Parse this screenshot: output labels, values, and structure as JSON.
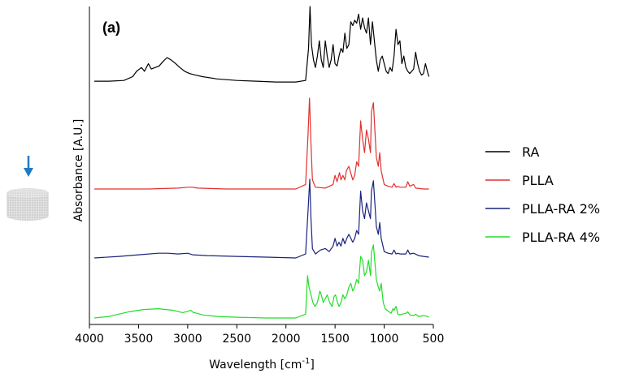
{
  "chart_data": {
    "type": "line",
    "panel_label": "(a)",
    "xlabel": "Wavelength [cm",
    "xlabel_sup": "-1",
    "xlabel_end": "]",
    "ylabel": "Absorbance [A.U.]",
    "xlim": [
      4000,
      500
    ],
    "x_ticks": [
      "4000",
      "3500",
      "3000",
      "2500",
      "2000",
      "1500",
      "1000",
      "500"
    ],
    "x_tick_values": [
      4000,
      3500,
      3000,
      2500,
      2000,
      1500,
      1000,
      500
    ],
    "y_ticks_shown": false,
    "grid": false,
    "legend_placement": "right",
    "series": [
      {
        "name": "RA",
        "color": "#000000",
        "points": [
          [
            3950,
            0.02
          ],
          [
            3800,
            0.02
          ],
          [
            3650,
            0.03
          ],
          [
            3560,
            0.08
          ],
          [
            3520,
            0.15
          ],
          [
            3470,
            0.2
          ],
          [
            3440,
            0.15
          ],
          [
            3400,
            0.25
          ],
          [
            3370,
            0.18
          ],
          [
            3330,
            0.2
          ],
          [
            3290,
            0.22
          ],
          [
            3250,
            0.28
          ],
          [
            3210,
            0.33
          ],
          [
            3170,
            0.3
          ],
          [
            3130,
            0.26
          ],
          [
            3080,
            0.2
          ],
          [
            3030,
            0.15
          ],
          [
            2980,
            0.12
          ],
          [
            2920,
            0.1
          ],
          [
            2850,
            0.08
          ],
          [
            2700,
            0.05
          ],
          [
            2500,
            0.03
          ],
          [
            2300,
            0.02
          ],
          [
            2100,
            0.01
          ],
          [
            1900,
            0.01
          ],
          [
            1800,
            0.03
          ],
          [
            1770,
            0.45
          ],
          [
            1755,
            1.0
          ],
          [
            1740,
            0.5
          ],
          [
            1720,
            0.3
          ],
          [
            1700,
            0.2
          ],
          [
            1680,
            0.35
          ],
          [
            1660,
            0.55
          ],
          [
            1640,
            0.3
          ],
          [
            1620,
            0.2
          ],
          [
            1600,
            0.55
          ],
          [
            1580,
            0.35
          ],
          [
            1560,
            0.2
          ],
          [
            1540,
            0.3
          ],
          [
            1520,
            0.5
          ],
          [
            1500,
            0.25
          ],
          [
            1480,
            0.22
          ],
          [
            1460,
            0.35
          ],
          [
            1440,
            0.45
          ],
          [
            1420,
            0.4
          ],
          [
            1400,
            0.65
          ],
          [
            1380,
            0.45
          ],
          [
            1360,
            0.5
          ],
          [
            1340,
            0.8
          ],
          [
            1320,
            0.75
          ],
          [
            1300,
            0.82
          ],
          [
            1280,
            0.78
          ],
          [
            1260,
            0.9
          ],
          [
            1240,
            0.7
          ],
          [
            1220,
            0.85
          ],
          [
            1200,
            0.72
          ],
          [
            1180,
            0.65
          ],
          [
            1160,
            0.85
          ],
          [
            1140,
            0.5
          ],
          [
            1120,
            0.8
          ],
          [
            1100,
            0.55
          ],
          [
            1080,
            0.3
          ],
          [
            1060,
            0.15
          ],
          [
            1040,
            0.3
          ],
          [
            1020,
            0.35
          ],
          [
            1000,
            0.25
          ],
          [
            980,
            0.15
          ],
          [
            960,
            0.12
          ],
          [
            940,
            0.2
          ],
          [
            920,
            0.15
          ],
          [
            900,
            0.35
          ],
          [
            880,
            0.7
          ],
          [
            860,
            0.5
          ],
          [
            840,
            0.55
          ],
          [
            820,
            0.25
          ],
          [
            800,
            0.35
          ],
          [
            780,
            0.2
          ],
          [
            760,
            0.15
          ],
          [
            740,
            0.12
          ],
          [
            720,
            0.15
          ],
          [
            700,
            0.18
          ],
          [
            680,
            0.4
          ],
          [
            660,
            0.25
          ],
          [
            640,
            0.15
          ],
          [
            620,
            0.1
          ],
          [
            600,
            0.12
          ],
          [
            580,
            0.25
          ],
          [
            560,
            0.15
          ],
          [
            545,
            0.08
          ]
        ]
      },
      {
        "name": "PLLA",
        "color": "#e0312f",
        "points": [
          [
            3950,
            0.0
          ],
          [
            3700,
            0.0
          ],
          [
            3400,
            0.0
          ],
          [
            3100,
            0.01
          ],
          [
            3000,
            0.02
          ],
          [
            2950,
            0.02
          ],
          [
            2900,
            0.01
          ],
          [
            2600,
            0.0
          ],
          [
            2300,
            0.0
          ],
          [
            2000,
            0.0
          ],
          [
            1900,
            0.0
          ],
          [
            1800,
            0.05
          ],
          [
            1775,
            0.6
          ],
          [
            1760,
            1.0
          ],
          [
            1745,
            0.5
          ],
          [
            1730,
            0.1
          ],
          [
            1700,
            0.02
          ],
          [
            1600,
            0.01
          ],
          [
            1520,
            0.05
          ],
          [
            1500,
            0.15
          ],
          [
            1480,
            0.08
          ],
          [
            1455,
            0.18
          ],
          [
            1440,
            0.1
          ],
          [
            1420,
            0.15
          ],
          [
            1400,
            0.1
          ],
          [
            1385,
            0.2
          ],
          [
            1360,
            0.25
          ],
          [
            1320,
            0.1
          ],
          [
            1300,
            0.15
          ],
          [
            1280,
            0.3
          ],
          [
            1260,
            0.25
          ],
          [
            1240,
            0.75
          ],
          [
            1220,
            0.55
          ],
          [
            1200,
            0.4
          ],
          [
            1180,
            0.65
          ],
          [
            1160,
            0.55
          ],
          [
            1140,
            0.4
          ],
          [
            1130,
            0.85
          ],
          [
            1110,
            0.95
          ],
          [
            1090,
            0.55
          ],
          [
            1080,
            0.35
          ],
          [
            1060,
            0.25
          ],
          [
            1045,
            0.4
          ],
          [
            1030,
            0.2
          ],
          [
            1000,
            0.05
          ],
          [
            960,
            0.03
          ],
          [
            920,
            0.02
          ],
          [
            900,
            0.06
          ],
          [
            880,
            0.02
          ],
          [
            860,
            0.03
          ],
          [
            840,
            0.02
          ],
          [
            780,
            0.02
          ],
          [
            760,
            0.08
          ],
          [
            740,
            0.03
          ],
          [
            700,
            0.05
          ],
          [
            680,
            0.01
          ],
          [
            600,
            0.0
          ],
          [
            545,
            0.0
          ]
        ]
      },
      {
        "name": "PLLA-RA 2%",
        "color": "#1a237e",
        "points": [
          [
            3950,
            0.0
          ],
          [
            3700,
            0.02
          ],
          [
            3500,
            0.04
          ],
          [
            3300,
            0.06
          ],
          [
            3200,
            0.06
          ],
          [
            3100,
            0.05
          ],
          [
            3000,
            0.06
          ],
          [
            2950,
            0.04
          ],
          [
            2800,
            0.03
          ],
          [
            2500,
            0.02
          ],
          [
            2200,
            0.01
          ],
          [
            1900,
            0.0
          ],
          [
            1800,
            0.05
          ],
          [
            1775,
            0.6
          ],
          [
            1758,
            1.0
          ],
          [
            1745,
            0.5
          ],
          [
            1730,
            0.12
          ],
          [
            1700,
            0.05
          ],
          [
            1650,
            0.1
          ],
          [
            1600,
            0.12
          ],
          [
            1560,
            0.08
          ],
          [
            1520,
            0.15
          ],
          [
            1500,
            0.25
          ],
          [
            1480,
            0.15
          ],
          [
            1460,
            0.2
          ],
          [
            1440,
            0.15
          ],
          [
            1420,
            0.25
          ],
          [
            1400,
            0.18
          ],
          [
            1380,
            0.25
          ],
          [
            1360,
            0.3
          ],
          [
            1320,
            0.2
          ],
          [
            1300,
            0.25
          ],
          [
            1280,
            0.35
          ],
          [
            1260,
            0.3
          ],
          [
            1240,
            0.85
          ],
          [
            1220,
            0.6
          ],
          [
            1200,
            0.5
          ],
          [
            1180,
            0.7
          ],
          [
            1160,
            0.6
          ],
          [
            1140,
            0.5
          ],
          [
            1130,
            0.85
          ],
          [
            1110,
            0.98
          ],
          [
            1090,
            0.6
          ],
          [
            1080,
            0.4
          ],
          [
            1060,
            0.3
          ],
          [
            1045,
            0.45
          ],
          [
            1030,
            0.25
          ],
          [
            1000,
            0.08
          ],
          [
            960,
            0.06
          ],
          [
            920,
            0.05
          ],
          [
            900,
            0.1
          ],
          [
            880,
            0.05
          ],
          [
            860,
            0.06
          ],
          [
            840,
            0.05
          ],
          [
            780,
            0.05
          ],
          [
            760,
            0.1
          ],
          [
            740,
            0.05
          ],
          [
            700,
            0.06
          ],
          [
            650,
            0.03
          ],
          [
            600,
            0.02
          ],
          [
            545,
            0.01
          ]
        ]
      },
      {
        "name": "PLLA-RA 4%",
        "color": "#22dd2a",
        "points": [
          [
            3950,
            0.0
          ],
          [
            3800,
            0.02
          ],
          [
            3600,
            0.08
          ],
          [
            3450,
            0.11
          ],
          [
            3300,
            0.12
          ],
          [
            3150,
            0.1
          ],
          [
            3050,
            0.07
          ],
          [
            2990,
            0.09
          ],
          [
            2970,
            0.1
          ],
          [
            2940,
            0.07
          ],
          [
            2900,
            0.06
          ],
          [
            2850,
            0.04
          ],
          [
            2700,
            0.02
          ],
          [
            2500,
            0.01
          ],
          [
            2200,
            0.0
          ],
          [
            1900,
            0.0
          ],
          [
            1800,
            0.05
          ],
          [
            1780,
            0.55
          ],
          [
            1765,
            0.4
          ],
          [
            1745,
            0.3
          ],
          [
            1725,
            0.2
          ],
          [
            1705,
            0.15
          ],
          [
            1680,
            0.2
          ],
          [
            1655,
            0.35
          ],
          [
            1640,
            0.3
          ],
          [
            1620,
            0.2
          ],
          [
            1600,
            0.25
          ],
          [
            1580,
            0.3
          ],
          [
            1555,
            0.2
          ],
          [
            1530,
            0.15
          ],
          [
            1510,
            0.28
          ],
          [
            1495,
            0.3
          ],
          [
            1480,
            0.22
          ],
          [
            1460,
            0.15
          ],
          [
            1440,
            0.2
          ],
          [
            1420,
            0.3
          ],
          [
            1400,
            0.25
          ],
          [
            1380,
            0.3
          ],
          [
            1360,
            0.4
          ],
          [
            1340,
            0.45
          ],
          [
            1320,
            0.35
          ],
          [
            1300,
            0.4
          ],
          [
            1280,
            0.5
          ],
          [
            1260,
            0.45
          ],
          [
            1240,
            0.8
          ],
          [
            1220,
            0.75
          ],
          [
            1200,
            0.55
          ],
          [
            1180,
            0.6
          ],
          [
            1160,
            0.75
          ],
          [
            1140,
            0.55
          ],
          [
            1130,
            0.85
          ],
          [
            1110,
            0.95
          ],
          [
            1090,
            0.65
          ],
          [
            1080,
            0.5
          ],
          [
            1060,
            0.4
          ],
          [
            1045,
            0.35
          ],
          [
            1030,
            0.45
          ],
          [
            1010,
            0.2
          ],
          [
            990,
            0.12
          ],
          [
            970,
            0.1
          ],
          [
            950,
            0.08
          ],
          [
            930,
            0.06
          ],
          [
            910,
            0.12
          ],
          [
            900,
            0.1
          ],
          [
            880,
            0.15
          ],
          [
            860,
            0.05
          ],
          [
            840,
            0.04
          ],
          [
            820,
            0.05
          ],
          [
            780,
            0.06
          ],
          [
            760,
            0.08
          ],
          [
            740,
            0.04
          ],
          [
            700,
            0.03
          ],
          [
            680,
            0.05
          ],
          [
            650,
            0.02
          ],
          [
            600,
            0.03
          ],
          [
            560,
            0.02
          ],
          [
            545,
            0.01
          ]
        ]
      }
    ]
  },
  "side_graphic": {
    "arrow_icon": "down-arrow-icon",
    "arrow_color": "#1e7ac9",
    "sample_icon": "cylindrical-scaffold-icon"
  }
}
